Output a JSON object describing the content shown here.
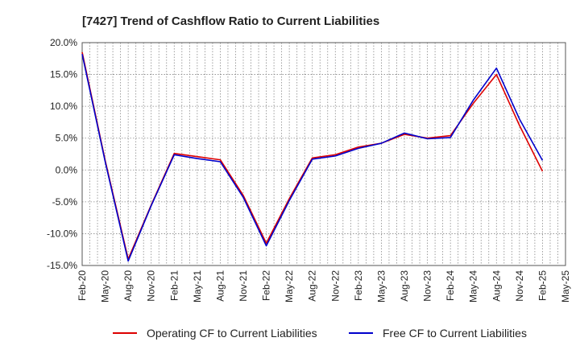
{
  "chart_data": {
    "type": "line",
    "title": "[7427]  Trend of Cashflow Ratio to Current Liabilities",
    "xlabel": "",
    "ylabel": "",
    "ylim": [
      -15,
      20
    ],
    "y_ticks": [
      20,
      15,
      10,
      5,
      0,
      -5,
      -10,
      -15
    ],
    "y_tick_labels": [
      "20.0%",
      "15.0%",
      "10.0%",
      "5.0%",
      "0.0%",
      "-5.0%",
      "-10.0%",
      "-15.0%"
    ],
    "x": [
      "Feb-20",
      "May-20",
      "Aug-20",
      "Nov-20",
      "Feb-21",
      "May-21",
      "Aug-21",
      "Nov-21",
      "Feb-22",
      "May-22",
      "Aug-22",
      "Nov-22",
      "Feb-23",
      "May-23",
      "Aug-23",
      "Nov-23",
      "Feb-24",
      "May-24",
      "Aug-24",
      "Nov-24",
      "Feb-25",
      "May-25"
    ],
    "grid": true,
    "legend_position": "bottom",
    "series": [
      {
        "name": "Operating CF to Current Liabilities",
        "color": "#dd0000",
        "values": [
          18.5,
          1.5,
          -14.0,
          -5.5,
          2.6,
          2.1,
          1.6,
          -4.0,
          -11.5,
          -4.5,
          1.9,
          2.4,
          3.6,
          4.2,
          5.6,
          5.0,
          5.4,
          10.5,
          15.0,
          7.0,
          -0.2,
          null
        ]
      },
      {
        "name": "Free CF to Current Liabilities",
        "color": "#0000cc",
        "values": [
          18.2,
          1.3,
          -14.3,
          -5.6,
          2.4,
          1.8,
          1.3,
          -4.3,
          -11.9,
          -4.8,
          1.7,
          2.2,
          3.4,
          4.2,
          5.8,
          4.9,
          5.1,
          11.0,
          16.0,
          8.0,
          1.5,
          null
        ]
      }
    ]
  }
}
